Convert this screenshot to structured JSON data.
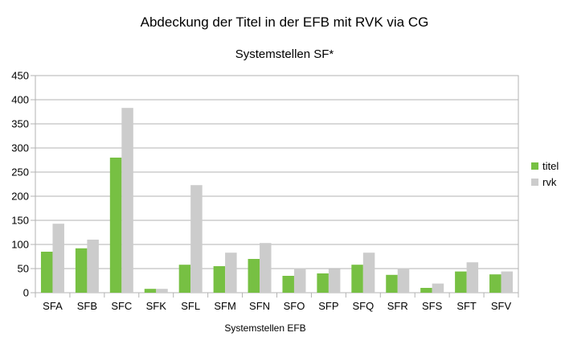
{
  "chart_data": {
    "type": "bar",
    "title": "Abdeckung der Titel in der EFB mit RVK via CG",
    "subtitle": "Systemstellen SF*",
    "xlabel": "Systemstellen EFB",
    "ylabel": "",
    "ylim": [
      0,
      450
    ],
    "yticks": [
      0,
      50,
      100,
      150,
      200,
      250,
      300,
      350,
      400,
      450
    ],
    "grid": true,
    "legend_position": "right",
    "categories": [
      "SFA",
      "SFB",
      "SFC",
      "SFK",
      "SFL",
      "SFM",
      "SFN",
      "SFO",
      "SFP",
      "SFQ",
      "SFR",
      "SFS",
      "SFT",
      "SFV"
    ],
    "series": [
      {
        "name": "titel",
        "color": "#77c043",
        "values": [
          85,
          92,
          280,
          8,
          58,
          55,
          70,
          35,
          40,
          58,
          37,
          10,
          44,
          38
        ]
      },
      {
        "name": "rvk",
        "color": "#cccccc",
        "values": [
          143,
          110,
          383,
          8,
          223,
          83,
          103,
          51,
          49,
          83,
          51,
          19,
          63,
          44
        ]
      }
    ]
  }
}
